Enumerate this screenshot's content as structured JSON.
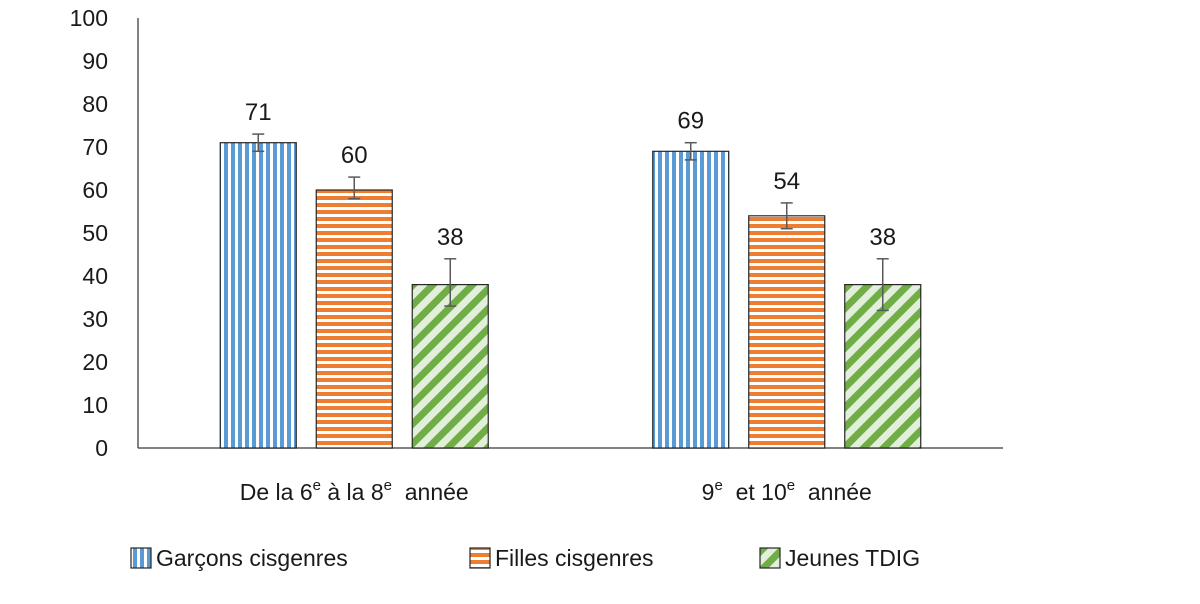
{
  "chart_data": {
    "type": "bar",
    "categories": [
      "De la 6e à la 8e année",
      "9e et 10e année"
    ],
    "category_parts": [
      [
        {
          "text": "De la 6",
          "sup": "e"
        },
        {
          "text": " à la 8",
          "sup": "e"
        },
        {
          "text": "  année",
          "sup": ""
        }
      ],
      [
        {
          "text": "9",
          "sup": "e"
        },
        {
          "text": "  et 10",
          "sup": "e"
        },
        {
          "text": "  année",
          "sup": ""
        }
      ]
    ],
    "series": [
      {
        "name": "Garçons cisgenres",
        "values": [
          71,
          69
        ],
        "labels": [
          "71",
          "69"
        ],
        "error": [
          [
            69,
            73
          ],
          [
            67,
            71
          ]
        ],
        "color": "#5b9bd5",
        "pattern": "vertical"
      },
      {
        "name": "Filles cisgenres",
        "values": [
          60,
          54
        ],
        "labels": [
          "60",
          "54"
        ],
        "error": [
          [
            58,
            63
          ],
          [
            51,
            57
          ]
        ],
        "color": "#ed7d31",
        "pattern": "horizontal"
      },
      {
        "name": "Jeunes TDIG",
        "values": [
          38,
          38
        ],
        "labels": [
          "38",
          "38"
        ],
        "error": [
          [
            33,
            44
          ],
          [
            32,
            44
          ]
        ],
        "color": "#70ad47",
        "pattern": "diagonal"
      }
    ],
    "ylim": [
      0,
      100
    ],
    "yticks": [
      0,
      10,
      20,
      30,
      40,
      50,
      60,
      70,
      80,
      90,
      100
    ],
    "ytick_labels": [
      "0",
      "10",
      "20",
      "30",
      "40",
      "50",
      "60",
      "70",
      "80",
      "90",
      "100"
    ],
    "title": "",
    "xlabel": "",
    "ylabel": "",
    "grid": false,
    "legend_position": "bottom",
    "error_bar_color": "#595959"
  }
}
